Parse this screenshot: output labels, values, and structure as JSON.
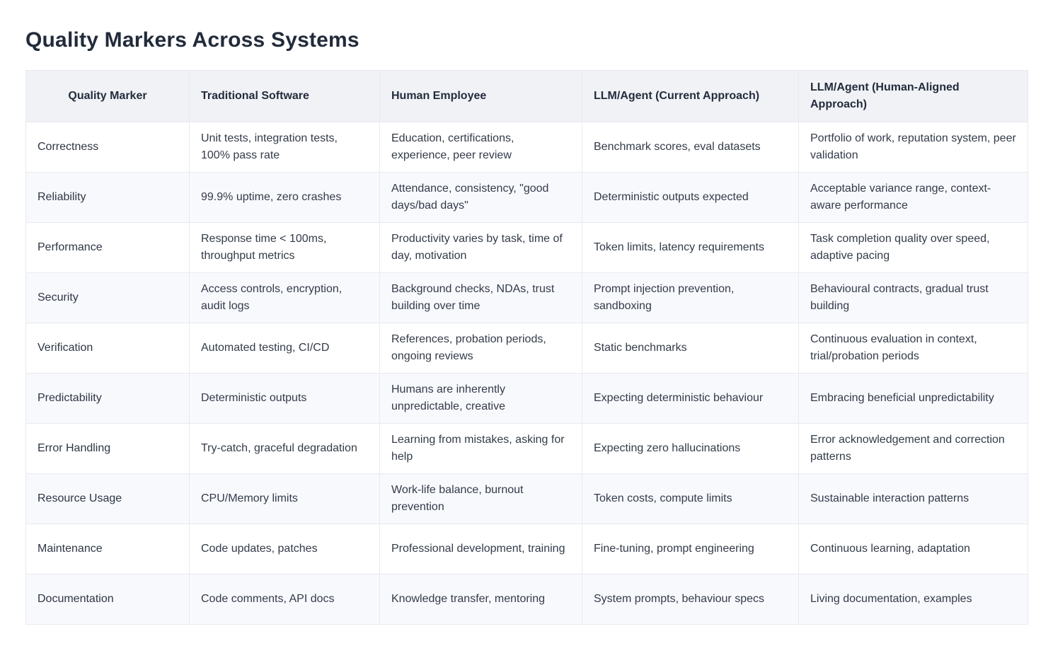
{
  "page": {
    "title": "Quality Markers Across Systems"
  },
  "table": {
    "columns": [
      {
        "label": "Quality Marker"
      },
      {
        "label": "Traditional Software"
      },
      {
        "label": "Human Employee"
      },
      {
        "label": "LLM/Agent (Current Approach)"
      },
      {
        "label": "LLM/Agent (Human-Aligned Approach)"
      }
    ],
    "rows": [
      [
        "Correctness",
        "Unit tests, integration tests, 100% pass rate",
        "Education, certifications, experience, peer review",
        "Benchmark scores, eval datasets",
        "Portfolio of work, reputation system, peer validation"
      ],
      [
        "Reliability",
        "99.9% uptime, zero crashes",
        "Attendance, consistency, \"good days/bad days\"",
        "Deterministic outputs expected",
        "Acceptable variance range, context-aware performance"
      ],
      [
        "Performance",
        "Response time < 100ms, throughput metrics",
        "Productivity varies by task, time of day, motivation",
        "Token limits, latency requirements",
        "Task completion quality over speed, adaptive pacing"
      ],
      [
        "Security",
        "Access controls, encryption, audit logs",
        "Background checks, NDAs, trust building over time",
        "Prompt injection prevention, sandboxing",
        "Behavioural contracts, gradual trust building"
      ],
      [
        "Verification",
        "Automated testing, CI/CD",
        "References, probation periods, ongoing reviews",
        "Static benchmarks",
        "Continuous evaluation in context, trial/probation periods"
      ],
      [
        "Predictability",
        "Deterministic outputs",
        "Humans are inherently unpredictable, creative",
        "Expecting deterministic behaviour",
        "Embracing beneficial unpredictability"
      ],
      [
        "Error Handling",
        "Try-catch, graceful degradation",
        "Learning from mistakes, asking for help",
        "Expecting zero hallucinations",
        "Error acknowledgement and correction patterns"
      ],
      [
        "Resource Usage",
        "CPU/Memory limits",
        "Work-life balance, burnout prevention",
        "Token costs, compute limits",
        "Sustainable interaction patterns"
      ],
      [
        "Maintenance",
        "Code updates, patches",
        "Professional development, training",
        "Fine-tuning, prompt engineering",
        "Continuous learning, adaptation"
      ],
      [
        "Documentation",
        "Code comments, API docs",
        "Knowledge transfer, mentoring",
        "System prompts, behaviour specs",
        "Living documentation, examples"
      ]
    ],
    "colors": {
      "header_background": "#f1f2f6",
      "stripe_background": "#f8f9fd",
      "border": "#e9eaef",
      "heading_text": "#222b3a",
      "body_text": "#333b49"
    }
  }
}
